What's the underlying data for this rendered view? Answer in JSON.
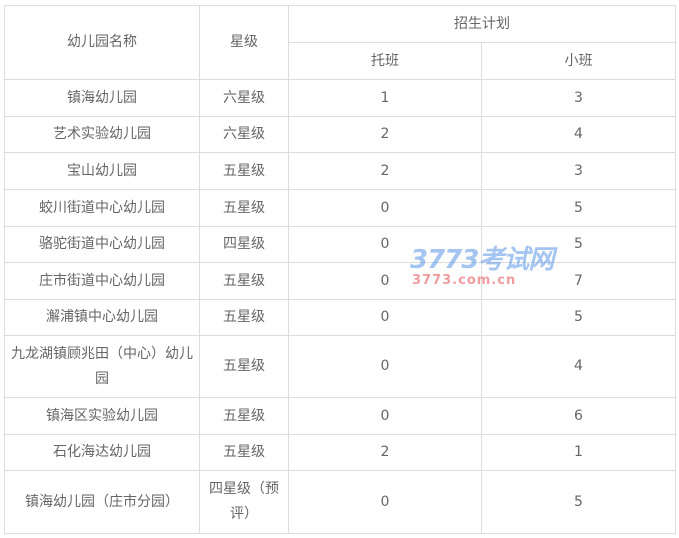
{
  "header": {
    "name": "幼儿园名称",
    "level": "星级",
    "plan": "招生计划",
    "tuoban": "托班",
    "xiaoban": "小班"
  },
  "rows": [
    {
      "name": "镇海幼儿园",
      "level": "六星级",
      "tuoban": "1",
      "xiaoban": "3"
    },
    {
      "name": "艺术实验幼儿园",
      "level": "六星级",
      "tuoban": "2",
      "xiaoban": "4"
    },
    {
      "name": "宝山幼儿园",
      "level": "五星级",
      "tuoban": "2",
      "xiaoban": "3"
    },
    {
      "name": "蛟川街道中心幼儿园",
      "level": "五星级",
      "tuoban": "0",
      "xiaoban": "5"
    },
    {
      "name": "骆驼街道中心幼儿园",
      "level": "四星级",
      "tuoban": "0",
      "xiaoban": "5"
    },
    {
      "name": "庄市街道中心幼儿园",
      "level": "五星级",
      "tuoban": "0",
      "xiaoban": "7"
    },
    {
      "name": "澥浦镇中心幼儿园",
      "level": "五星级",
      "tuoban": "0",
      "xiaoban": "5"
    },
    {
      "name": "九龙湖镇顾兆田（中心）幼儿园",
      "level": "五星级",
      "tuoban": "0",
      "xiaoban": "4"
    },
    {
      "name": "镇海区实验幼儿园",
      "level": "五星级",
      "tuoban": "0",
      "xiaoban": "6"
    },
    {
      "name": "石化海达幼儿园",
      "level": "五星级",
      "tuoban": "2",
      "xiaoban": "1"
    },
    {
      "name": "镇海幼儿园（庄市分园）",
      "level": "四星级（预评）",
      "tuoban": "0",
      "xiaoban": "5"
    }
  ],
  "watermark": {
    "logo": "3773考试网",
    "url": "3773.com.cn"
  }
}
